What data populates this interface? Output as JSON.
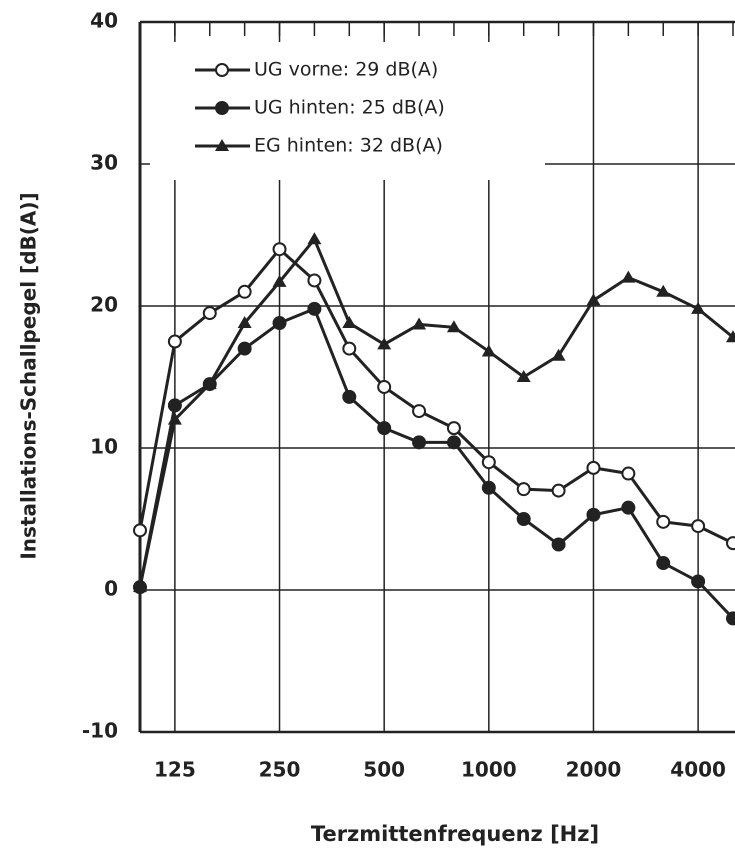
{
  "chart_data": {
    "type": "line",
    "x_label": "Terzmittenfrequenz [Hz]",
    "y_label": "Installations-Schallpegel [dB(A)]",
    "categories": [
      null,
      "125",
      null,
      null,
      "250",
      null,
      null,
      "500",
      null,
      null,
      "1000",
      null,
      null,
      "2000",
      null,
      null,
      "4000",
      null
    ],
    "ylim": [
      -10,
      40
    ],
    "yticks": [
      -10,
      0,
      10,
      20,
      30,
      40
    ],
    "grid": true,
    "legend": "upper-left",
    "series": [
      {
        "name": "UG vorne: 29 dB(A)",
        "color": "#222222",
        "marker": "open-circle",
        "values": [
          4.2,
          17.5,
          19.5,
          21,
          24,
          21.8,
          17,
          14.3,
          12.6,
          11.4,
          9,
          7.1,
          7,
          8.6,
          8.2,
          4.8,
          4.5,
          3.3
        ]
      },
      {
        "name": "UG hinten: 25 dB(A)",
        "color": "#222222",
        "marker": "filled-circle",
        "values": [
          0.2,
          13,
          14.5,
          17,
          18.8,
          19.8,
          13.6,
          11.4,
          10.4,
          10.4,
          7.2,
          5,
          3.2,
          5.3,
          5.8,
          1.9,
          0.6,
          -2
        ]
      },
      {
        "name": "EG hinten: 32 dB(A)",
        "color": "#222222",
        "marker": "triangle",
        "values": [
          0.2,
          12,
          14.5,
          18.8,
          21.7,
          24.7,
          18.8,
          17.3,
          18.7,
          18.5,
          16.8,
          15,
          16.5,
          20.4,
          22,
          21,
          19.8,
          17.8
        ]
      }
    ]
  }
}
